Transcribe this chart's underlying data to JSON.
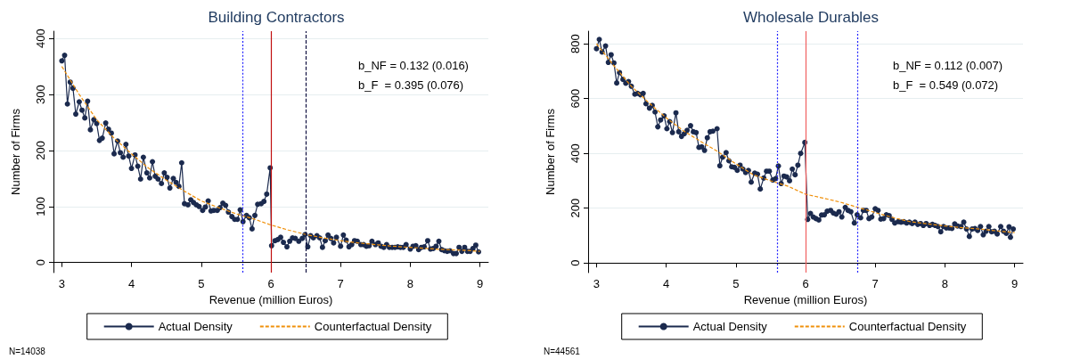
{
  "chart_data": [
    {
      "type": "line",
      "title": "Building Contractors",
      "xlabel": "Revenue (million Euros)",
      "ylabel": "Number of Firms",
      "xlim": [
        2.88,
        9.12
      ],
      "xticks": [
        3,
        4,
        5,
        6,
        7,
        8,
        9
      ],
      "ylim": [
        -18,
        413
      ],
      "yticks": [
        0,
        100,
        200,
        300,
        400
      ],
      "grid": "y",
      "legend": "bottom",
      "series": [
        {
          "name": "Actual Density",
          "color": "#1b2a4e",
          "marker": "circle",
          "line_style": "solid",
          "x": [
            3.0,
            3.04,
            3.08,
            3.12,
            3.16,
            3.2,
            3.25,
            3.29,
            3.33,
            3.37,
            3.41,
            3.46,
            3.5,
            3.54,
            3.58,
            3.63,
            3.67,
            3.71,
            3.75,
            3.8,
            3.84,
            3.88,
            3.92,
            3.96,
            4.0,
            4.05,
            4.09,
            4.13,
            4.17,
            4.22,
            4.26,
            4.3,
            4.34,
            4.38,
            4.43,
            4.47,
            4.51,
            4.55,
            4.6,
            4.64,
            4.68,
            4.72,
            4.76,
            4.81,
            4.85,
            4.89,
            4.93,
            4.97,
            5.02,
            5.06,
            5.1,
            5.14,
            5.18,
            5.23,
            5.27,
            5.31,
            5.35,
            5.39,
            5.44,
            5.48,
            5.52,
            5.56,
            5.6,
            5.65,
            5.69,
            5.73,
            5.77,
            5.81,
            5.86,
            5.9,
            5.94,
            5.99,
            6.01,
            6.06,
            6.1,
            6.14,
            6.18,
            6.23,
            6.27,
            6.31,
            6.35,
            6.4,
            6.45,
            6.49,
            6.53,
            6.57,
            6.61,
            6.66,
            6.7,
            6.74,
            6.78,
            6.82,
            6.86,
            6.9,
            6.94,
            7.0,
            7.04,
            7.08,
            7.12,
            7.16,
            7.2,
            7.24,
            7.29,
            7.33,
            7.37,
            7.41,
            7.45,
            7.5,
            7.54,
            7.58,
            7.62,
            7.66,
            7.7,
            7.74,
            7.78,
            7.82,
            7.86,
            7.9,
            7.94,
            8.0,
            8.04,
            8.08,
            8.12,
            8.16,
            8.2,
            8.25,
            8.29,
            8.33,
            8.37,
            8.41,
            8.45,
            8.49,
            8.53,
            8.57,
            8.62,
            8.66,
            8.7,
            8.74,
            8.78,
            8.82,
            8.86,
            8.9,
            8.94,
            8.98
          ],
          "values": [
            360,
            370,
            283,
            322,
            311,
            265,
            287,
            272,
            258,
            288,
            237,
            255,
            248,
            218,
            222,
            249,
            238,
            231,
            194,
            217,
            196,
            188,
            211,
            190,
            168,
            192,
            172,
            149,
            188,
            160,
            151,
            180,
            154,
            149,
            141,
            160,
            152,
            133,
            150,
            143,
            136,
            178,
            105,
            103,
            112,
            107,
            103,
            100,
            93,
            99,
            110,
            92,
            93,
            93,
            98,
            106,
            102,
            90,
            82,
            77,
            77,
            94,
            73,
            84,
            80,
            60,
            84,
            104,
            105,
            109,
            122,
            169,
            30,
            39,
            41,
            45,
            36,
            28,
            38,
            44,
            43,
            38,
            43,
            50,
            28,
            48,
            44,
            48,
            44,
            27,
            39,
            49,
            43,
            35,
            45,
            29,
            49,
            40,
            28,
            32,
            39,
            38,
            32,
            32,
            29,
            30,
            38,
            32,
            35,
            29,
            27,
            32,
            27,
            27,
            27,
            28,
            27,
            27,
            32,
            24,
            29,
            30,
            23,
            27,
            28,
            39,
            24,
            25,
            29,
            38,
            23,
            21,
            20,
            21,
            16,
            16,
            27,
            20,
            27,
            20,
            20,
            25,
            31,
            19
          ]
        },
        {
          "name": "Counterfactual Density",
          "color": "#f0900a",
          "marker": "none",
          "line_style": "dashed",
          "x": [
            3.0,
            3.25,
            3.5,
            3.75,
            4.0,
            4.25,
            4.5,
            4.75,
            5.0,
            5.25,
            5.5,
            5.75,
            6.0,
            6.25,
            6.5,
            6.75,
            7.0,
            7.25,
            7.5,
            7.75,
            8.0,
            8.25,
            8.5,
            8.75,
            9.0
          ],
          "values": [
            350,
            300,
            255,
            222,
            194,
            168,
            147,
            128,
            110,
            98,
            87,
            78,
            67,
            58,
            50,
            44,
            39,
            35,
            32,
            29,
            27,
            25,
            23,
            22,
            20
          ]
        }
      ],
      "ref_lines": [
        {
          "axis": "x",
          "value": 5.6,
          "label": null,
          "color": "#2020ff",
          "line_style": "dotted"
        },
        {
          "axis": "x",
          "value": 6,
          "label": null,
          "color": "#c01010",
          "line_style": "solid"
        },
        {
          "axis": "x",
          "value": 6.5,
          "label": null,
          "color": "#101040",
          "line_style": "dashed"
        }
      ],
      "annotations": [
        "b_NF = 0.132 (0.016)",
        "b_F  = 0.395 (0.076)",
        "N=14038"
      ]
    },
    {
      "type": "line",
      "title": "Wholesale Durables",
      "xlabel": "Revenue (million Euros)",
      "ylabel": "Number of Firms",
      "xlim": [
        2.88,
        9.12
      ],
      "xticks": [
        3,
        4,
        5,
        6,
        7,
        8,
        9
      ],
      "ylim": [
        -35,
        846
      ],
      "yticks": [
        0,
        200,
        400,
        600,
        800
      ],
      "grid": "y",
      "legend": "bottom",
      "series": [
        {
          "name": "Actual Density",
          "color": "#1b2a4e",
          "marker": "circle",
          "line_style": "solid",
          "x": [
            3.0,
            3.04,
            3.08,
            3.13,
            3.17,
            3.21,
            3.25,
            3.29,
            3.33,
            3.38,
            3.42,
            3.46,
            3.5,
            3.55,
            3.59,
            3.63,
            3.67,
            3.71,
            3.76,
            3.8,
            3.84,
            3.88,
            3.92,
            3.97,
            4.01,
            4.05,
            4.09,
            4.14,
            4.18,
            4.22,
            4.26,
            4.3,
            4.35,
            4.39,
            4.43,
            4.47,
            4.51,
            4.55,
            4.59,
            4.63,
            4.67,
            4.73,
            4.77,
            4.81,
            4.86,
            4.9,
            4.94,
            4.98,
            5.02,
            5.06,
            5.1,
            5.14,
            5.18,
            5.22,
            5.27,
            5.31,
            5.35,
            5.4,
            5.44,
            5.48,
            5.53,
            5.57,
            5.61,
            5.65,
            5.69,
            5.73,
            5.77,
            5.81,
            5.85,
            5.89,
            5.93,
            5.99,
            6.03,
            6.07,
            6.11,
            6.15,
            6.19,
            6.23,
            6.27,
            6.31,
            6.36,
            6.4,
            6.44,
            6.48,
            6.52,
            6.57,
            6.61,
            6.65,
            6.7,
            6.74,
            6.79,
            6.83,
            6.87,
            6.91,
            6.95,
            7.0,
            7.04,
            7.08,
            7.12,
            7.16,
            7.2,
            7.24,
            7.28,
            7.33,
            7.37,
            7.41,
            7.45,
            7.49,
            7.53,
            7.57,
            7.61,
            7.65,
            7.69,
            7.73,
            7.78,
            7.82,
            7.86,
            7.9,
            7.94,
            7.98,
            8.02,
            8.06,
            8.1,
            8.14,
            8.18,
            8.23,
            8.27,
            8.31,
            8.35,
            8.39,
            8.43,
            8.47,
            8.51,
            8.55,
            8.59,
            8.63,
            8.67,
            8.71,
            8.75,
            8.8,
            8.84,
            8.88,
            8.92,
            8.94,
            8.98
          ],
          "values": [
            782,
            816,
            770,
            792,
            732,
            760,
            730,
            657,
            695,
            670,
            656,
            662,
            645,
            616,
            619,
            614,
            619,
            581,
            565,
            575,
            551,
            497,
            522,
            537,
            490,
            516,
            476,
            548,
            479,
            462,
            472,
            484,
            501,
            479,
            476,
            422,
            424,
            411,
            457,
            479,
            481,
            490,
            355,
            386,
            403,
            373,
            351,
            349,
            338,
            357,
            343,
            330,
            338,
            295,
            328,
            324,
            270,
            310,
            335,
            335,
            303,
            308,
            354,
            290,
            317,
            314,
            300,
            343,
            322,
            357,
            400,
            440,
            159,
            181,
            168,
            162,
            157,
            175,
            176,
            189,
            192,
            182,
            178,
            187,
            168,
            203,
            192,
            187,
            146,
            176,
            165,
            192,
            192,
            162,
            168,
            198,
            192,
            160,
            162,
            176,
            173,
            159,
            146,
            151,
            149,
            151,
            146,
            149,
            144,
            149,
            141,
            144,
            137,
            144,
            137,
            141,
            137,
            133,
            114,
            133,
            128,
            128,
            126,
            143,
            135,
            133,
            149,
            124,
            97,
            124,
            126,
            119,
            133,
            103,
            116,
            133,
            114,
            116,
            106,
            133,
            116,
            108,
            132,
            94,
            124
          ]
        },
        {
          "name": "Counterfactual Density",
          "color": "#f0900a",
          "marker": "none",
          "line_style": "dashed",
          "x": [
            3.0,
            3.25,
            3.5,
            3.75,
            4.0,
            4.25,
            4.5,
            4.75,
            5.0,
            5.25,
            5.5,
            5.75,
            6.0,
            6.25,
            6.5,
            6.75,
            7.0,
            7.25,
            7.5,
            7.75,
            8.0,
            8.25,
            8.5,
            8.75,
            9.0
          ],
          "values": [
            800,
            720,
            645,
            585,
            530,
            482,
            443,
            405,
            362,
            322,
            300,
            280,
            251,
            237,
            222,
            203,
            184,
            166,
            151,
            143,
            135,
            129,
            124,
            117,
            111
          ]
        }
      ],
      "ref_lines": [
        {
          "axis": "x",
          "value": 5.6,
          "label": null,
          "color": "#2020ff",
          "line_style": "dotted"
        },
        {
          "axis": "x",
          "value": 6,
          "label": null,
          "color": "#f06060",
          "line_style": "solid"
        },
        {
          "axis": "x",
          "value": 6.75,
          "label": null,
          "color": "#2020ff",
          "line_style": "dotted"
        }
      ],
      "annotations": [
        "b_NF = 0.112 (0.007)",
        "b_F  = 0.549 (0.072)",
        "N=44561"
      ]
    }
  ]
}
